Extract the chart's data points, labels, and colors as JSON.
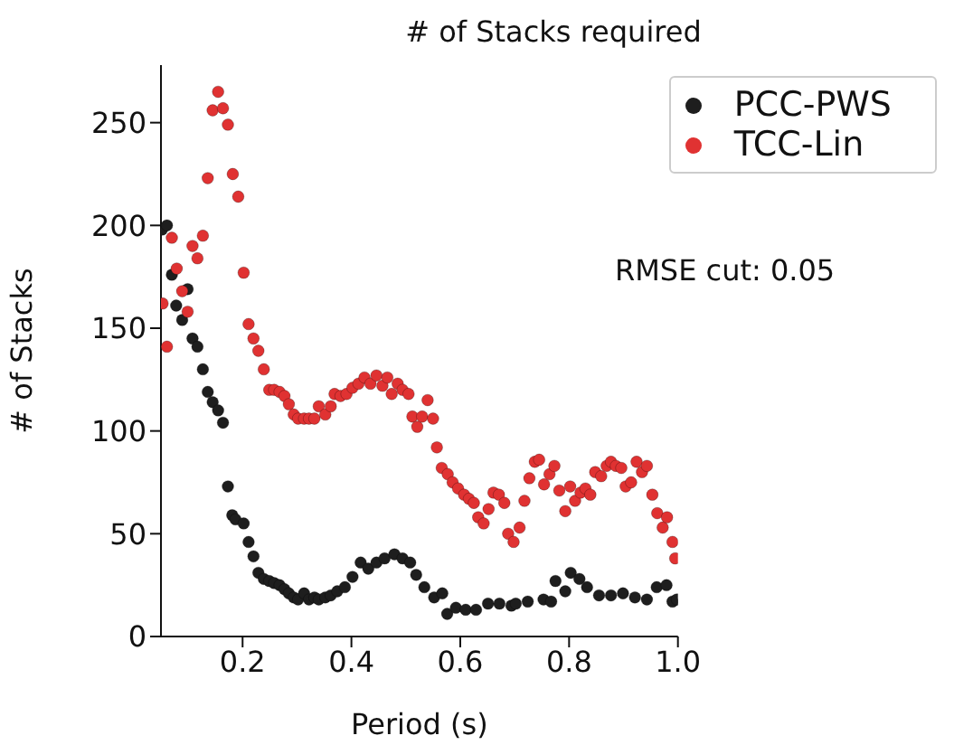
{
  "chart_data": {
    "type": "scatter",
    "title": "# of Stacks required",
    "xlabel": "Period (s)",
    "ylabel": "# of Stacks",
    "annotations": [
      "RMSE cut: 0.05"
    ],
    "xlim": [
      0.05,
      1.0
    ],
    "ylim": [
      0,
      278
    ],
    "xticks": [
      0.2,
      0.4,
      0.6,
      0.8,
      {
        "value": 1,
        "label": "1.0"
      }
    ],
    "yticks": [
      0,
      50,
      100,
      150,
      200,
      250
    ],
    "grid": false,
    "legend": "top right",
    "marker": "circle",
    "series": [
      {
        "name": "PCC-PWS",
        "color": "#1e1e1e",
        "x": [
          0.052,
          0.061,
          0.07,
          0.078,
          0.089,
          0.099,
          0.108,
          0.117,
          0.127,
          0.136,
          0.145,
          0.155,
          0.164,
          0.173,
          0.181,
          0.187,
          0.202,
          0.211,
          0.22,
          0.229,
          0.239,
          0.249,
          0.258,
          0.268,
          0.277,
          0.285,
          0.294,
          0.302,
          0.313,
          0.322,
          0.332,
          0.34,
          0.352,
          0.362,
          0.374,
          0.388,
          0.402,
          0.417,
          0.431,
          0.446,
          0.461,
          0.479,
          0.494,
          0.508,
          0.519,
          0.534,
          0.552,
          0.567,
          0.576,
          0.592,
          0.61,
          0.629,
          0.651,
          0.672,
          0.694,
          0.702,
          0.724,
          0.753,
          0.767,
          0.775,
          0.793,
          0.803,
          0.819,
          0.833,
          0.855,
          0.877,
          0.899,
          0.921,
          0.943,
          0.961,
          0.979,
          0.99,
          0.998
        ],
        "values": [
          198,
          200,
          176,
          161,
          154,
          169,
          145,
          141,
          130,
          119,
          114,
          110,
          104,
          73,
          59,
          57,
          55,
          46,
          39,
          31,
          28,
          27,
          26,
          25,
          23,
          21,
          19,
          18,
          21,
          18,
          19,
          18,
          19,
          20,
          22,
          24,
          29,
          36,
          33,
          36,
          38,
          40,
          38,
          36,
          30,
          24,
          19,
          21,
          11,
          14,
          13,
          13,
          16,
          16,
          15,
          16,
          17,
          18,
          17,
          27,
          22,
          31,
          28,
          24,
          20,
          20,
          21,
          19,
          18,
          24,
          25,
          17,
          18
        ]
      },
      {
        "name": "TCC-Lin",
        "color": "#e03232",
        "x": [
          0.053,
          0.061,
          0.07,
          0.079,
          0.089,
          0.099,
          0.108,
          0.117,
          0.127,
          0.136,
          0.145,
          0.155,
          0.164,
          0.173,
          0.182,
          0.192,
          0.202,
          0.211,
          0.22,
          0.229,
          0.239,
          0.249,
          0.258,
          0.268,
          0.277,
          0.285,
          0.294,
          0.302,
          0.313,
          0.322,
          0.332,
          0.34,
          0.352,
          0.362,
          0.369,
          0.38,
          0.391,
          0.402,
          0.413,
          0.424,
          0.435,
          0.446,
          0.457,
          0.466,
          0.474,
          0.485,
          0.494,
          0.505,
          0.512,
          0.521,
          0.53,
          0.54,
          0.55,
          0.557,
          0.566,
          0.577,
          0.586,
          0.596,
          0.607,
          0.616,
          0.625,
          0.633,
          0.643,
          0.652,
          0.661,
          0.671,
          0.681,
          0.688,
          0.698,
          0.709,
          0.718,
          0.727,
          0.737,
          0.745,
          0.754,
          0.764,
          0.773,
          0.782,
          0.793,
          0.802,
          0.811,
          0.821,
          0.83,
          0.839,
          0.848,
          0.859,
          0.869,
          0.877,
          0.886,
          0.896,
          0.904,
          0.914,
          0.924,
          0.934,
          0.943,
          0.953,
          0.962,
          0.972,
          0.98,
          0.99,
          0.995
        ],
        "values": [
          162,
          141,
          194,
          179,
          168,
          158,
          190,
          184,
          195,
          223,
          256,
          265,
          257,
          249,
          225,
          214,
          177,
          152,
          145,
          139,
          130,
          120,
          120,
          119,
          117,
          113,
          108,
          106,
          106,
          106,
          106,
          112,
          108,
          112,
          118,
          117,
          118,
          121,
          123,
          126,
          123,
          127,
          122,
          126,
          118,
          123,
          120,
          118,
          107,
          102,
          107,
          115,
          106,
          92,
          82,
          79,
          75,
          72,
          69,
          67,
          65,
          58,
          55,
          62,
          70,
          69,
          65,
          50,
          46,
          53,
          66,
          77,
          85,
          86,
          74,
          79,
          83,
          71,
          61,
          73,
          66,
          70,
          72,
          69,
          80,
          78,
          83,
          85,
          83,
          82,
          73,
          75,
          85,
          80,
          83,
          69,
          60,
          53,
          58,
          46,
          38
        ]
      }
    ]
  }
}
